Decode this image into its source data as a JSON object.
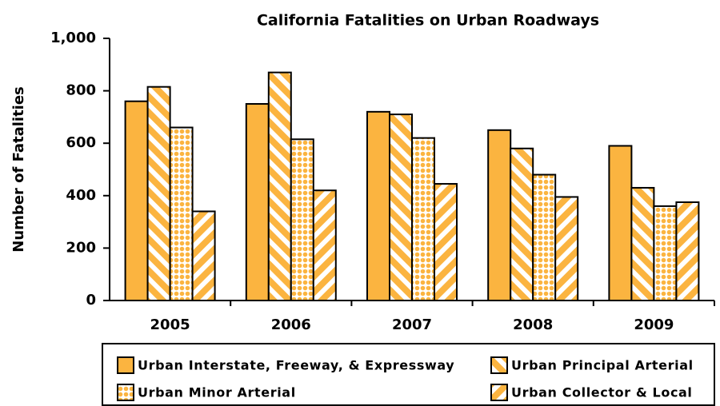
{
  "chart_data": {
    "type": "bar",
    "title": "California Fatalities on Urban Roadways",
    "y_label": "Number of Fatalities",
    "categories": [
      "2005",
      "2006",
      "2007",
      "2008",
      "2009"
    ],
    "series": [
      {
        "name": "Urban Interstate, Freeway, & Expressway",
        "color": "#fbb440",
        "pattern": "solid",
        "values": [
          760,
          750,
          720,
          650,
          590
        ]
      },
      {
        "name": "Urban Principal Arterial",
        "color": "#fbb440",
        "pattern": "stripes-back",
        "values": [
          815,
          870,
          710,
          580,
          430
        ]
      },
      {
        "name": "Urban Minor Arterial",
        "color": "#fbb440",
        "pattern": "dots",
        "values": [
          660,
          615,
          620,
          480,
          360
        ]
      },
      {
        "name": "Urban Collector & Local",
        "color": "#fbb440",
        "pattern": "stripes-forward",
        "values": [
          340,
          420,
          445,
          395,
          375
        ]
      }
    ],
    "ylim": [
      0,
      1000
    ],
    "yticks": [
      0,
      200,
      400,
      600,
      800,
      {
        "value": 1000,
        "label": "1,000"
      }
    ],
    "grid": false
  }
}
